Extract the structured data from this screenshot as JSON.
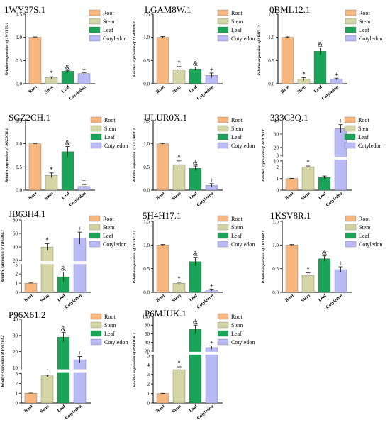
{
  "legend": [
    "Root",
    "Stem",
    "Leaf",
    "Cotyledon"
  ],
  "colors": {
    "Root": "#f8b67f",
    "Stem": "#d4d5a4",
    "Leaf": "#1aa458",
    "Cotyledon": "#b9b9f5"
  },
  "chart_data": [
    {
      "type": "bar",
      "title": "1WY37S.1",
      "ylabel": "Relative expression of 1WY37S.1",
      "categories": [
        "Root",
        "Stem",
        "Leaf",
        "Cotyledon"
      ],
      "values": [
        1.0,
        0.13,
        0.27,
        0.22
      ],
      "errors": [
        0.01,
        0.02,
        0.01,
        0.02
      ],
      "marks": [
        "",
        "*",
        "&",
        "+"
      ],
      "ylim": [
        0,
        1.5
      ],
      "yticks": [
        "0.0",
        "0.5",
        "1.0",
        "1.5"
      ]
    },
    {
      "type": "bar",
      "title": "LGAM8W.1",
      "ylabel": "Relative expression of LGAM8W.1",
      "categories": [
        "Root",
        "Stem",
        "Leaf",
        "Cotyledon"
      ],
      "values": [
        1.0,
        0.3,
        0.32,
        0.18
      ],
      "errors": [
        0.02,
        0.07,
        0.04,
        0.05
      ],
      "marks": [
        "",
        "*",
        "&",
        "+"
      ],
      "ylim": [
        0,
        1.5
      ],
      "yticks": [
        "0.0",
        "0.5",
        "1.0",
        "1.5"
      ]
    },
    {
      "type": "bar",
      "title": "0BML12.1",
      "ylabel": "Relative expression of 0BML12.1",
      "categories": [
        "Root",
        "Stem",
        "Leaf",
        "Cotyledon"
      ],
      "values": [
        1.0,
        0.1,
        0.7,
        0.1
      ],
      "errors": [
        0.01,
        0.03,
        0.07,
        0.02
      ],
      "marks": [
        "",
        "*",
        "&",
        "+"
      ],
      "ylim": [
        0,
        1.5
      ],
      "yticks": [
        "0.0",
        "0.5",
        "1.0",
        "1.5"
      ]
    },
    {
      "type": "bar",
      "title": "SGZ2CH.1",
      "ylabel": "Relative expression of SGZ2CH.1",
      "categories": [
        "Root",
        "Stem",
        "Leaf",
        "Cotyledon"
      ],
      "values": [
        1.0,
        0.32,
        0.83,
        0.08
      ],
      "errors": [
        0.01,
        0.05,
        0.11,
        0.04
      ],
      "marks": [
        "",
        "*",
        "&",
        "+"
      ],
      "ylim": [
        0,
        1.5
      ],
      "yticks": [
        "0.0",
        "0.5",
        "1.0",
        "1.5"
      ]
    },
    {
      "type": "bar",
      "title": "ULUR0X.1",
      "ylabel": "Relative expression of ULUR0X.1",
      "categories": [
        "Root",
        "Stem",
        "Leaf",
        "Cotyledon"
      ],
      "values": [
        1.0,
        0.55,
        0.47,
        0.1
      ],
      "errors": [
        0.01,
        0.08,
        0.05,
        0.04
      ],
      "marks": [
        "",
        "*",
        "&",
        "+"
      ],
      "ylim": [
        0,
        1.5
      ],
      "yticks": [
        "0.0",
        "0.5",
        "1.0",
        "1.5"
      ]
    },
    {
      "type": "bar",
      "title": "333C3Q.1",
      "ylabel": "Relative expression of 333C3Q.1",
      "categories": [
        "Root",
        "Stem",
        "Leaf",
        "Cotyledon"
      ],
      "values": [
        1.0,
        5.5,
        1.1,
        34
      ],
      "errors": [
        0.02,
        0.7,
        0.12,
        3
      ],
      "marks": [
        "",
        "*",
        "",
        "+"
      ],
      "ylim": [
        0,
        40
      ],
      "yticks": [
        "0",
        "1",
        "2",
        "3",
        "10",
        "20",
        "30",
        "40"
      ]
    },
    {
      "type": "bar",
      "title": "JB63H4.1",
      "ylabel": "Relative expression of JB63H4.1",
      "categories": [
        "Root",
        "Stem",
        "Leaf",
        "Cotyledon"
      ],
      "values": [
        1.0,
        40,
        1.7,
        53
      ],
      "errors": [
        0.02,
        5,
        0.5,
        9
      ],
      "marks": [
        "",
        "*",
        "&",
        "+"
      ],
      "ylim": [
        0,
        80
      ],
      "yticks": [
        "0",
        "1",
        "2",
        "3",
        "20",
        "40",
        "60",
        "80"
      ]
    },
    {
      "type": "bar",
      "title": "5H4H17.1",
      "ylabel": "Relative expression of 5H4H17.1",
      "categories": [
        "Root",
        "Stem",
        "Leaf",
        "Cotyledon"
      ],
      "values": [
        1.0,
        0.19,
        0.65,
        0.05
      ],
      "errors": [
        0.01,
        0.02,
        0.09,
        0.02
      ],
      "marks": [
        "",
        "*",
        "&",
        "+"
      ],
      "ylim": [
        0,
        1.5
      ],
      "yticks": [
        "0.0",
        "0.5",
        "1.0",
        "1.5"
      ]
    },
    {
      "type": "bar",
      "title": "1KSV8R.1",
      "ylabel": "Relative expression of 1KSV8R.1",
      "categories": [
        "Root",
        "Stem",
        "Leaf",
        "Cotyledon"
      ],
      "values": [
        1.0,
        0.36,
        0.71,
        0.48
      ],
      "errors": [
        0.01,
        0.05,
        0.06,
        0.06
      ],
      "marks": [
        "",
        "*",
        "&",
        "+"
      ],
      "ylim": [
        0,
        1.5
      ],
      "yticks": [
        "0.0",
        "0.5",
        "1.0",
        "1.5"
      ]
    },
    {
      "type": "bar",
      "title": "P96X61.2",
      "ylabel": "Relative expression of P96X61.2",
      "categories": [
        "Root",
        "Stem",
        "Leaf",
        "Cotyledon"
      ],
      "values": [
        1.0,
        5,
        29,
        15
      ],
      "errors": [
        0.02,
        0.5,
        3,
        2
      ],
      "marks": [
        "",
        "*",
        "&",
        "+"
      ],
      "ylim": [
        0,
        40
      ],
      "yticks": [
        "0",
        "1",
        "2",
        "3",
        "10",
        "20",
        "30",
        "40"
      ]
    },
    {
      "type": "bar",
      "title": "P6MJUK.1",
      "ylabel": "Relative expression of P6MJUK.1",
      "categories": [
        "Root",
        "Stem",
        "Leaf",
        "Cotyledon"
      ],
      "values": [
        1.0,
        3.5,
        70,
        28
      ],
      "errors": [
        0.02,
        0.3,
        10,
        4
      ],
      "marks": [
        "",
        "*",
        "&",
        "+"
      ],
      "ylim": [
        0,
        100
      ],
      "yticks": [
        "0",
        "1",
        "2",
        "3",
        "4",
        "5",
        "20",
        "40",
        "60",
        "80",
        "100"
      ]
    }
  ]
}
